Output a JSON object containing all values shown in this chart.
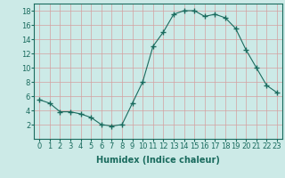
{
  "x": [
    0,
    1,
    2,
    3,
    4,
    5,
    6,
    7,
    8,
    9,
    10,
    11,
    12,
    13,
    14,
    15,
    16,
    17,
    18,
    19,
    20,
    21,
    22,
    23
  ],
  "y": [
    5.5,
    5.0,
    3.8,
    3.8,
    3.5,
    3.0,
    2.0,
    1.8,
    2.0,
    5.0,
    8.0,
    13.0,
    15.0,
    17.5,
    18.0,
    18.0,
    17.2,
    17.5,
    17.0,
    15.5,
    12.5,
    10.0,
    7.5,
    6.5
  ],
  "xlabel": "Humidex (Indice chaleur)",
  "ylim": [
    0,
    19
  ],
  "xlim": [
    -0.5,
    23.5
  ],
  "yticks": [
    2,
    4,
    6,
    8,
    10,
    12,
    14,
    16,
    18
  ],
  "xticks": [
    0,
    1,
    2,
    3,
    4,
    5,
    6,
    7,
    8,
    9,
    10,
    11,
    12,
    13,
    14,
    15,
    16,
    17,
    18,
    19,
    20,
    21,
    22,
    23
  ],
  "line_color": "#1a6b5e",
  "marker": "+",
  "marker_size": 4,
  "bg_color": "#cceae7",
  "grid_color": "#d4a0a0",
  "label_fontsize": 7,
  "tick_fontsize": 6
}
